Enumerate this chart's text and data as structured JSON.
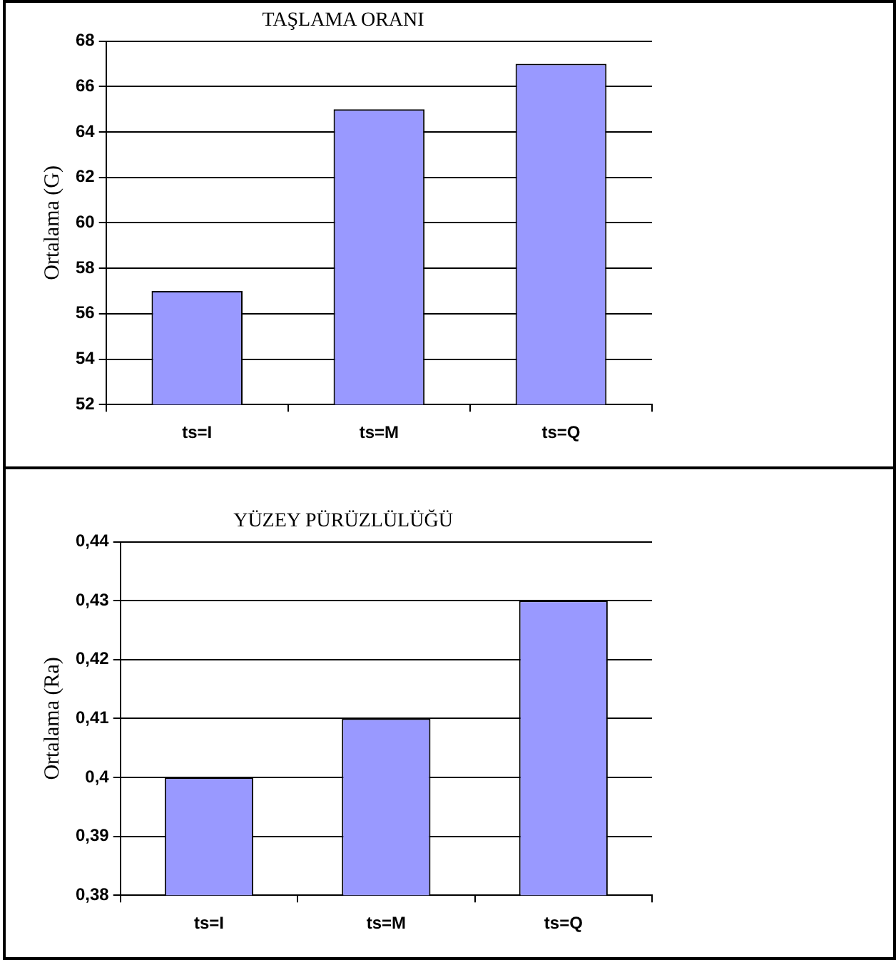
{
  "chart_data": [
    {
      "type": "bar",
      "title": "TAŞLAMA ORANI",
      "ylabel": "Ortalama (G)",
      "categories": [
        "ts=I",
        "ts=M",
        "ts=Q"
      ],
      "values": [
        57,
        65,
        67
      ],
      "color": "#9999ff",
      "ylim": [
        52,
        68
      ],
      "yticks": [
        52,
        54,
        56,
        58,
        60,
        62,
        64,
        66,
        68
      ],
      "grid": "y",
      "legend": false
    },
    {
      "type": "bar",
      "title": "YÜZEY PÜRÜZLÜLÜĞÜ",
      "ylabel": "Ortalama (Ra)",
      "categories": [
        "ts=I",
        "ts=M",
        "ts=Q"
      ],
      "values": [
        0.4,
        0.41,
        0.43
      ],
      "color": "#9999ff",
      "ylim": [
        0.38,
        0.44
      ],
      "yticks": [
        {
          "value": 0.38,
          "label": "0,38"
        },
        {
          "value": 0.39,
          "label": "0,39"
        },
        {
          "value": 0.4,
          "label": "0,4"
        },
        {
          "value": 0.41,
          "label": "0,41"
        },
        {
          "value": 0.42,
          "label": "0,42"
        },
        {
          "value": 0.43,
          "label": "0,43"
        },
        {
          "value": 0.44,
          "label": "0,44"
        }
      ],
      "grid": "y",
      "legend": false
    }
  ]
}
